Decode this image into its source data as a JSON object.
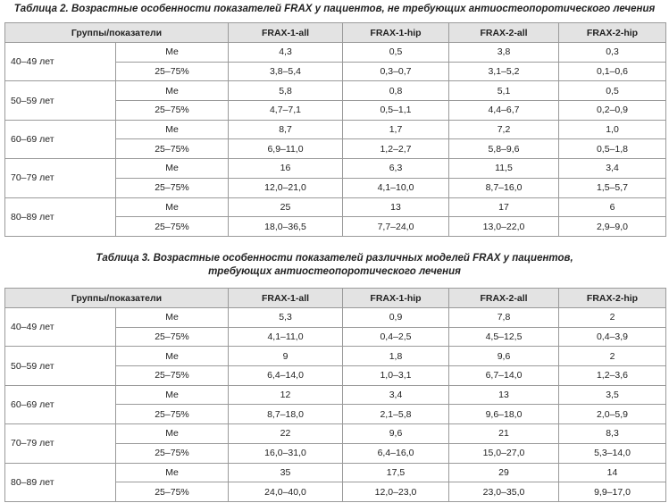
{
  "tables": [
    {
      "title": [
        "Таблица 2. Возрастные особенности показателей FRAX у пациентов, не требующих антиостеопоротического лечения"
      ],
      "header": [
        "Группы/показатели",
        "FRAX-1-all",
        "FRAX-1-hip",
        "FRAX-2-all",
        "FRAX-2-hip"
      ],
      "groups": [
        {
          "label": "40–49 лет",
          "rows": [
            [
              "Me",
              "4,3",
              "0,5",
              "3,8",
              "0,3"
            ],
            [
              "25–75%",
              "3,8–5,4",
              "0,3–0,7",
              "3,1–5,2",
              "0,1–0,6"
            ]
          ]
        },
        {
          "label": "50–59 лет",
          "rows": [
            [
              "Me",
              "5,8",
              "0,8",
              "5,1",
              "0,5"
            ],
            [
              "25–75%",
              "4,7–7,1",
              "0,5–1,1",
              "4,4–6,7",
              "0,2–0,9"
            ]
          ]
        },
        {
          "label": "60–69 лет",
          "rows": [
            [
              "Me",
              "8,7",
              "1,7",
              "7,2",
              "1,0"
            ],
            [
              "25–75%",
              "6,9–11,0",
              "1,2–2,7",
              "5,8–9,6",
              "0,5–1,8"
            ]
          ]
        },
        {
          "label": "70–79 лет",
          "rows": [
            [
              "Me",
              "16",
              "6,3",
              "11,5",
              "3,4"
            ],
            [
              "25–75%",
              "12,0–21,0",
              "4,1–10,0",
              "8,7–16,0",
              "1,5–5,7"
            ]
          ]
        },
        {
          "label": "80–89 лет",
          "rows": [
            [
              "Me",
              "25",
              "13",
              "17",
              "6"
            ],
            [
              "25–75%",
              "18,0–36,5",
              "7,7–24,0",
              "13,0–22,0",
              "2,9–9,0"
            ]
          ]
        }
      ]
    },
    {
      "title": [
        "Таблица 3. Возрастные особенности показателей различных моделей FRAX у пациентов,",
        "требующих антиостеопоротического лечения"
      ],
      "header": [
        "Группы/показатели",
        "FRAX-1-all",
        "FRAX-1-hip",
        "FRAX-2-all",
        "FRAX-2-hip"
      ],
      "groups": [
        {
          "label": "40–49 лет",
          "rows": [
            [
              "Me",
              "5,3",
              "0,9",
              "7,8",
              "2"
            ],
            [
              "25–75%",
              "4,1–11,0",
              "0,4–2,5",
              "4,5–12,5",
              "0,4–3,9"
            ]
          ]
        },
        {
          "label": "50–59 лет",
          "rows": [
            [
              "Me",
              "9",
              "1,8",
              "9,6",
              "2"
            ],
            [
              "25–75%",
              "6,4–14,0",
              "1,0–3,1",
              "6,7–14,0",
              "1,2–3,6"
            ]
          ]
        },
        {
          "label": "60–69 лет",
          "rows": [
            [
              "Me",
              "12",
              "3,4",
              "13",
              "3,5"
            ],
            [
              "25–75%",
              "8,7–18,0",
              "2,1–5,8",
              "9,6–18,0",
              "2,0–5,9"
            ]
          ]
        },
        {
          "label": "70–79 лет",
          "rows": [
            [
              "Me",
              "22",
              "9,6",
              "21",
              "8,3"
            ],
            [
              "25–75%",
              "16,0–31,0",
              "6,4–16,0",
              "15,0–27,0",
              "5,3–14,0"
            ]
          ]
        },
        {
          "label": "80–89 лет",
          "rows": [
            [
              "Me",
              "35",
              "17,5",
              "29",
              "14"
            ],
            [
              "25–75%",
              "24,0–40,0",
              "12,0–23,0",
              "23,0–35,0",
              "9,9–17,0"
            ]
          ]
        }
      ]
    }
  ]
}
